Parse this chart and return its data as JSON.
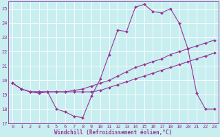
{
  "xlabel": "Windchill (Refroidissement éolien,°C)",
  "xlim": [
    -0.5,
    23.5
  ],
  "ylim": [
    17,
    25.5
  ],
  "xticks": [
    0,
    1,
    2,
    3,
    4,
    5,
    6,
    7,
    8,
    9,
    10,
    11,
    12,
    13,
    14,
    15,
    16,
    17,
    18,
    19,
    20,
    21,
    22,
    23
  ],
  "yticks": [
    17,
    18,
    19,
    20,
    21,
    22,
    23,
    24,
    25
  ],
  "bg_color": "#c8eef0",
  "grid_color": "#ffffff",
  "line_color": "#993399",
  "line1_x": [
    0,
    1,
    2,
    3,
    4,
    5,
    6,
    7,
    8,
    9,
    10,
    11,
    12,
    13,
    14,
    15,
    16,
    17,
    18,
    19,
    20,
    21,
    22,
    23
  ],
  "line1_y": [
    19.8,
    19.4,
    19.2,
    19.1,
    19.2,
    18.0,
    17.8,
    17.5,
    17.4,
    18.9,
    20.1,
    21.8,
    23.5,
    23.4,
    25.1,
    25.3,
    24.8,
    24.7,
    25.0,
    24.0,
    22.2,
    19.1,
    18.0,
    18.0
  ],
  "line2_x": [
    0,
    1,
    2,
    3,
    4,
    5,
    6,
    7,
    8,
    9,
    10,
    11,
    12,
    13,
    14,
    15,
    16,
    17,
    18,
    19,
    20,
    21,
    22,
    23
  ],
  "line2_y": [
    19.8,
    19.4,
    19.2,
    19.2,
    19.2,
    19.2,
    19.2,
    19.3,
    19.4,
    19.6,
    19.8,
    20.0,
    20.3,
    20.6,
    20.9,
    21.1,
    21.3,
    21.5,
    21.8,
    22.0,
    22.2,
    22.4,
    22.6,
    22.8
  ],
  "line3_x": [
    0,
    1,
    2,
    3,
    4,
    5,
    6,
    7,
    8,
    9,
    10,
    11,
    12,
    13,
    14,
    15,
    16,
    17,
    18,
    19,
    20,
    21,
    22,
    23
  ],
  "line3_y": [
    19.8,
    19.4,
    19.2,
    19.2,
    19.2,
    19.2,
    19.2,
    19.2,
    19.2,
    19.2,
    19.3,
    19.5,
    19.7,
    19.9,
    20.1,
    20.3,
    20.5,
    20.7,
    20.9,
    21.1,
    21.3,
    21.5,
    21.7,
    21.9
  ],
  "tick_fontsize": 5.0,
  "label_fontsize": 5.5,
  "linewidth": 0.8,
  "markersize": 2.0
}
